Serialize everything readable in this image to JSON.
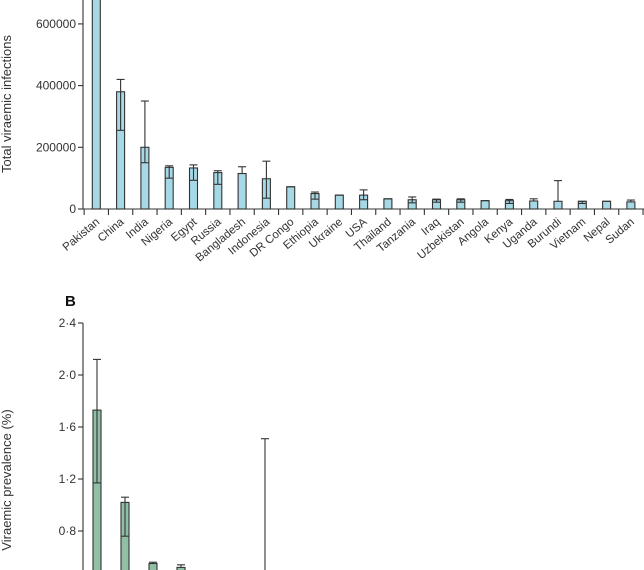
{
  "chart_data": [
    {
      "type": "bar",
      "panel": "",
      "ylabel": "Total viraemic infections",
      "ylim": [
        0,
        680000
      ],
      "yticks": [
        "0",
        "200000",
        "400000",
        "600000"
      ],
      "ytick_values": [
        0,
        200000,
        400000,
        600000
      ],
      "categories": [
        "Pakistan",
        "China",
        "India",
        "Nigeria",
        "Egypt",
        "Russia",
        "Bangladesh",
        "Indonesia",
        "DR Congo",
        "Ethiopia",
        "Ukraine",
        "USA",
        "Thailand",
        "Tanzania",
        "Iraq",
        "Uzbekistan",
        "Angola",
        "Kenya",
        "Uganda",
        "Burundi",
        "Vietnam",
        "Nepal",
        "Sudan"
      ],
      "values": [
        720000,
        380000,
        200000,
        135000,
        133000,
        118000,
        115000,
        98000,
        72000,
        50000,
        45000,
        45000,
        33000,
        30000,
        30000,
        30000,
        27000,
        27000,
        26000,
        25000,
        25000,
        25000,
        23000
      ],
      "lower": [
        null,
        255000,
        150000,
        100000,
        93000,
        80000,
        null,
        35000,
        null,
        32000,
        null,
        30000,
        null,
        20000,
        22000,
        22000,
        null,
        18000,
        null,
        null,
        18000,
        null,
        null
      ],
      "upper": [
        null,
        420000,
        350000,
        140000,
        143000,
        124000,
        137000,
        155000,
        72000,
        55000,
        45000,
        62000,
        33000,
        39000,
        32000,
        33000,
        27000,
        31000,
        33000,
        92000,
        25000,
        25000,
        29000
      ],
      "bar_color": "#a6d8e6",
      "grid": false
    },
    {
      "type": "bar",
      "panel": "B",
      "ylabel": "Viraemic prevalence (%)",
      "ylim": [
        0.5,
        2.4
      ],
      "yticks": [
        "0·8",
        "1·2",
        "1·6",
        "2·0",
        "2·4"
      ],
      "ytick_values": [
        0.8,
        1.2,
        1.6,
        2.0,
        2.4
      ],
      "values": [
        1.73,
        1.02,
        0.55,
        0.52,
        null,
        null,
        null
      ],
      "lower": [
        1.17,
        0.76,
        null,
        null,
        null,
        null,
        null
      ],
      "upper": [
        2.12,
        1.06,
        0.56,
        0.54,
        null,
        null,
        1.51
      ],
      "bar_color": "#8fc0a6",
      "grid": false
    }
  ]
}
